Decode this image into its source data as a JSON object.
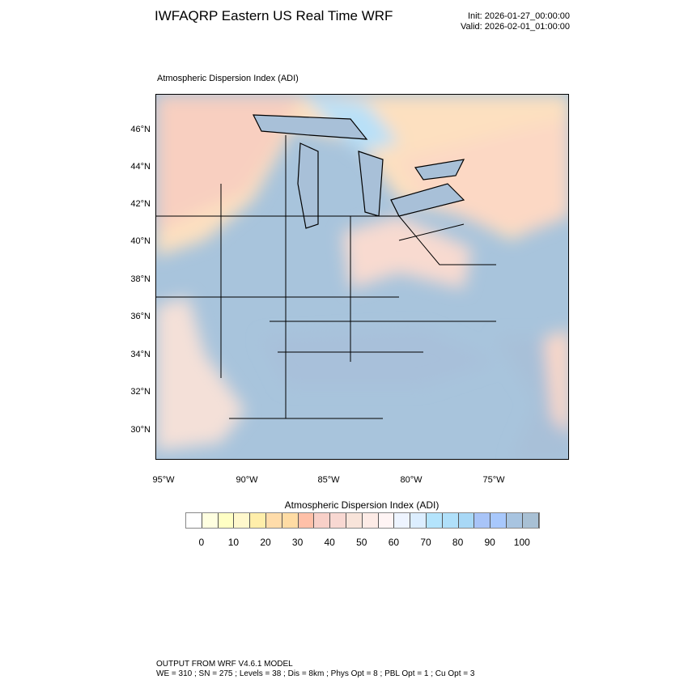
{
  "header": {
    "title": "IWFAQRP Eastern US Real Time WRF",
    "init": "Init: 2026-01-27_00:00:00",
    "valid": "Valid: 2026-02-01_01:00:00"
  },
  "map": {
    "title": "Atmospheric Dispersion Index   (ADI)",
    "lat_labels": [
      "46°N",
      "44°N",
      "42°N",
      "40°N",
      "38°N",
      "36°N",
      "34°N",
      "32°N",
      "30°N"
    ],
    "lon_labels": [
      "95°W",
      "90°W",
      "85°W",
      "80°W",
      "75°W"
    ]
  },
  "colorbar": {
    "title": "Atmospheric Dispersion Index  (ADI)",
    "labels": [
      "0",
      "10",
      "20",
      "30",
      "40",
      "50",
      "60",
      "70",
      "80",
      "90",
      "100"
    ],
    "colors": [
      "#ffffff",
      "#ffffe0",
      "#ffffc4",
      "#fff8cc",
      "#ffeeaa",
      "#ffdcaa",
      "#ffdca4",
      "#ffc0a8",
      "#f8d0c8",
      "#f8d8d2",
      "#f8e4da",
      "#fdebe6",
      "#fff4f4",
      "#eef4ff",
      "#dceeff",
      "#b4e4fc",
      "#b0e0fa",
      "#a8d8f6",
      "#a8c4f8",
      "#a8c8fc",
      "#a8c4e0",
      "#a8c0d4"
    ]
  },
  "footer": {
    "line1": "OUTPUT FROM WRF V4.6.1 MODEL",
    "line2": "WE = 310 ; SN = 275 ; Levels = 38 ; Dis = 8km ; Phys Opt = 8 ; PBL Opt = 1 ; Cu Opt = 3"
  }
}
